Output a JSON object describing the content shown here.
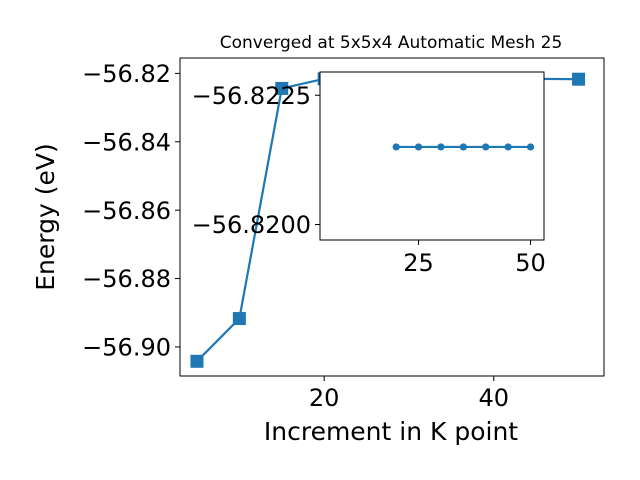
{
  "chart_data": [
    {
      "type": "line",
      "title": "Converged at 5x5x4 Automatic Mesh 25",
      "xlabel": "Increment in K point",
      "ylabel": "Energy (eV)",
      "xlim": [
        3,
        53
      ],
      "ylim": [
        -56.9085,
        -56.8155
      ],
      "xticks": [
        20,
        40
      ],
      "yticks": [
        -56.9,
        -56.88,
        -56.86,
        -56.84,
        -56.82
      ],
      "xtick_labels": [
        "20",
        "40"
      ],
      "ytick_labels": [
        "−56.90",
        "−56.88",
        "−56.86",
        "−56.84",
        "−56.82"
      ],
      "marker": "square",
      "color": "#1f77b4",
      "series": [
        {
          "x": [
            5,
            10,
            15,
            20,
            25,
            30,
            35,
            40,
            45,
            50
          ],
          "y": [
            -56.9042,
            -56.8917,
            -56.8244,
            -56.8216,
            -56.8215,
            -56.8216,
            -56.8216,
            -56.8216,
            -56.8216,
            -56.8217
          ]
        }
      ]
    },
    {
      "type": "line",
      "title": "",
      "xlabel": "",
      "ylabel": "",
      "inset": true,
      "xlim": [
        3,
        53
      ],
      "ylim": [
        -56.8197,
        -56.82295
      ],
      "xticks": [
        25,
        50
      ],
      "yticks": [
        -56.8225,
        -56.82
      ],
      "xtick_labels": [
        "25",
        "50"
      ],
      "ytick_labels": [
        "−56.8225",
        "−56.8200"
      ],
      "marker": "circle",
      "color": "#1f77b4",
      "series": [
        {
          "x": [
            20,
            25,
            30,
            35,
            40,
            45,
            50
          ],
          "y": [
            -56.8215,
            -56.8215,
            -56.8215,
            -56.8215,
            -56.8215,
            -56.8215,
            -56.8215
          ]
        }
      ]
    }
  ]
}
